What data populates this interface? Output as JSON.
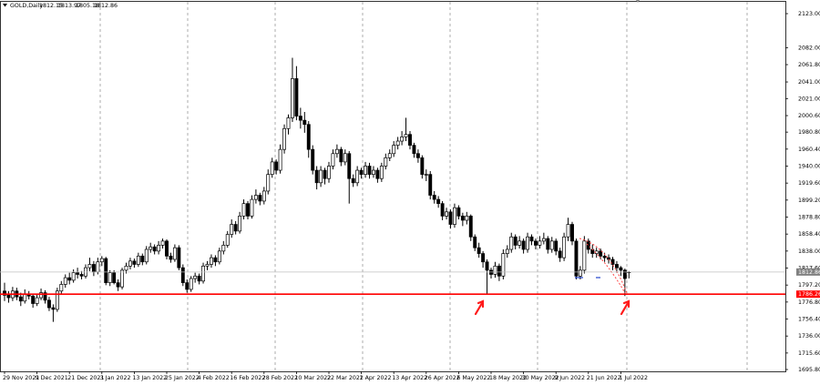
{
  "chart_data": {
    "type": "candlestick",
    "symbol": "GOLD,Daily",
    "up_color": "#ffffff",
    "down_color": "#000000",
    "outline": "#000000",
    "ylim": [
      1693.6,
      2137.2
    ],
    "yticks": [
      {
        "value": 2123,
        "label": "2123.00"
      },
      {
        "value": 2082,
        "label": "2082.00"
      },
      {
        "value": 2061.8,
        "label": "2061.80"
      },
      {
        "value": 2041,
        "label": "2041.00"
      },
      {
        "value": 2021,
        "label": "2021.00"
      },
      {
        "value": 2000.6,
        "label": "2000.60"
      },
      {
        "value": 1980.8,
        "label": "1980.80"
      },
      {
        "value": 1960.4,
        "label": "1960.40"
      },
      {
        "value": 1940,
        "label": "1940.00"
      },
      {
        "value": 1919.6,
        "label": "1919.60"
      },
      {
        "value": 1899.2,
        "label": "1899.20"
      },
      {
        "value": 1878.8,
        "label": "1878.80"
      },
      {
        "value": 1858.4,
        "label": "1858.40"
      },
      {
        "value": 1838,
        "label": "1838.00"
      },
      {
        "value": 1817.6,
        "label": "1817.60"
      },
      {
        "value": 1797.2,
        "label": "1797.20"
      },
      {
        "value": 1776.8,
        "label": "1776.80"
      },
      {
        "value": 1756.4,
        "label": "1756.40"
      },
      {
        "value": 1736,
        "label": "1736.00"
      },
      {
        "value": 1715.6,
        "label": "1715.60"
      },
      {
        "value": 1695.8,
        "label": "1695.80"
      }
    ],
    "hline": {
      "value": 1786.26,
      "color": "#ff0000"
    },
    "x": [
      "29 Nov 2021",
      null,
      null,
      null,
      null,
      null,
      null,
      null,
      "9 Dec 2021",
      null,
      null,
      null,
      null,
      null,
      null,
      null,
      "21 Dec 2021",
      null,
      null,
      null,
      null,
      null,
      null,
      null,
      "3 Jan 2022",
      null,
      null,
      null,
      null,
      null,
      null,
      null,
      "13 Jan 2022",
      null,
      null,
      null,
      null,
      null,
      null,
      null,
      "25 Jan 2022",
      null,
      null,
      null,
      null,
      null,
      null,
      null,
      "4 Feb 2022",
      null,
      null,
      null,
      null,
      null,
      null,
      null,
      "16 Feb 2022",
      null,
      null,
      null,
      null,
      null,
      null,
      null,
      "28 Feb 2022",
      null,
      null,
      null,
      null,
      null,
      null,
      null,
      "10 Mar 2022",
      null,
      null,
      null,
      null,
      null,
      null,
      null,
      "22 Mar 2022",
      null,
      null,
      null,
      null,
      null,
      null,
      null,
      "1 Apr 2022",
      null,
      null,
      null,
      null,
      null,
      null,
      null,
      "13 Apr 2022",
      null,
      null,
      null,
      null,
      null,
      null,
      null,
      "26 Apr 2022",
      null,
      null,
      null,
      null,
      null,
      null,
      null,
      "6 May 2022",
      null,
      null,
      null,
      null,
      null,
      null,
      null,
      "18 May 2022",
      null,
      null,
      null,
      null,
      null,
      null,
      null,
      "30 May 2022",
      null,
      null,
      null,
      null,
      null,
      null,
      null,
      "9 Jun 2022",
      null,
      null,
      null,
      null,
      null,
      null,
      null,
      "21 Jun 2022",
      null,
      null,
      null,
      null,
      null,
      null,
      null,
      "1 Jul 2022",
      null,
      null
    ],
    "ohlc": [
      [
        1790,
        1800,
        1778,
        1785
      ],
      [
        1785,
        1790,
        1776,
        1782
      ],
      [
        1782,
        1795,
        1778,
        1790
      ],
      [
        1790,
        1794,
        1779,
        1783
      ],
      [
        1783,
        1788,
        1772,
        1778
      ],
      [
        1778,
        1792,
        1775,
        1786
      ],
      [
        1786,
        1790,
        1780,
        1784
      ],
      [
        1784,
        1787,
        1770,
        1775
      ],
      [
        1775,
        1786,
        1772,
        1782
      ],
      [
        1782,
        1793,
        1779,
        1788
      ],
      [
        1788,
        1791,
        1775,
        1779
      ],
      [
        1779,
        1783,
        1766,
        1770
      ],
      [
        1770,
        1774,
        1753,
        1768
      ],
      [
        1768,
        1794,
        1765,
        1790
      ],
      [
        1790,
        1802,
        1786,
        1798
      ],
      [
        1798,
        1810,
        1794,
        1806
      ],
      [
        1806,
        1812,
        1798,
        1803
      ],
      [
        1803,
        1816,
        1800,
        1812
      ],
      [
        1812,
        1818,
        1805,
        1810
      ],
      [
        1810,
        1814,
        1804,
        1808
      ],
      [
        1808,
        1822,
        1805,
        1818
      ],
      [
        1818,
        1830,
        1814,
        1822
      ],
      [
        1822,
        1826,
        1808,
        1813
      ],
      [
        1813,
        1830,
        1810,
        1825
      ],
      [
        1825,
        1832,
        1820,
        1829
      ],
      [
        1829,
        1831,
        1797,
        1800
      ],
      [
        1800,
        1815,
        1796,
        1812
      ],
      [
        1812,
        1815,
        1798,
        1800
      ],
      [
        1800,
        1804,
        1790,
        1795
      ],
      [
        1795,
        1818,
        1792,
        1815
      ],
      [
        1815,
        1824,
        1811,
        1820
      ],
      [
        1820,
        1830,
        1816,
        1826
      ],
      [
        1826,
        1829,
        1818,
        1822
      ],
      [
        1822,
        1836,
        1819,
        1832
      ],
      [
        1832,
        1835,
        1821,
        1825
      ],
      [
        1825,
        1844,
        1822,
        1840
      ],
      [
        1840,
        1848,
        1836,
        1843
      ],
      [
        1843,
        1846,
        1834,
        1838
      ],
      [
        1838,
        1850,
        1834,
        1845
      ],
      [
        1845,
        1853,
        1841,
        1850
      ],
      [
        1850,
        1852,
        1828,
        1832
      ],
      [
        1832,
        1836,
        1824,
        1828
      ],
      [
        1828,
        1846,
        1825,
        1842
      ],
      [
        1842,
        1845,
        1815,
        1818
      ],
      [
        1818,
        1822,
        1796,
        1800
      ],
      [
        1800,
        1804,
        1788,
        1792
      ],
      [
        1792,
        1808,
        1789,
        1805
      ],
      [
        1805,
        1812,
        1800,
        1808
      ],
      [
        1808,
        1811,
        1798,
        1802
      ],
      [
        1802,
        1824,
        1799,
        1820
      ],
      [
        1820,
        1826,
        1815,
        1822
      ],
      [
        1822,
        1834,
        1818,
        1830
      ],
      [
        1830,
        1833,
        1820,
        1825
      ],
      [
        1825,
        1842,
        1822,
        1838
      ],
      [
        1838,
        1850,
        1834,
        1845
      ],
      [
        1845,
        1862,
        1842,
        1858
      ],
      [
        1858,
        1876,
        1854,
        1870
      ],
      [
        1870,
        1874,
        1858,
        1862
      ],
      [
        1862,
        1885,
        1859,
        1880
      ],
      [
        1880,
        1900,
        1876,
        1895
      ],
      [
        1895,
        1898,
        1876,
        1880
      ],
      [
        1880,
        1905,
        1877,
        1900
      ],
      [
        1900,
        1912,
        1895,
        1905
      ],
      [
        1905,
        1908,
        1893,
        1898
      ],
      [
        1898,
        1915,
        1894,
        1910
      ],
      [
        1910,
        1936,
        1906,
        1930
      ],
      [
        1930,
        1950,
        1926,
        1945
      ],
      [
        1945,
        1948,
        1930,
        1935
      ],
      [
        1935,
        1966,
        1931,
        1960
      ],
      [
        1960,
        1990,
        1955,
        1985
      ],
      [
        1985,
        2002,
        1978,
        1998
      ],
      [
        1998,
        2070,
        1993,
        2045
      ],
      [
        2045,
        2060,
        1995,
        2000
      ],
      [
        2000,
        2010,
        1985,
        1995
      ],
      [
        1995,
        2005,
        1980,
        1990
      ],
      [
        1990,
        1994,
        1950,
        1960
      ],
      [
        1960,
        1965,
        1930,
        1935
      ],
      [
        1935,
        1940,
        1912,
        1920
      ],
      [
        1920,
        1940,
        1915,
        1935
      ],
      [
        1935,
        1938,
        1918,
        1925
      ],
      [
        1925,
        1945,
        1920,
        1940
      ],
      [
        1940,
        1960,
        1936,
        1955
      ],
      [
        1955,
        1966,
        1950,
        1960
      ],
      [
        1960,
        1963,
        1940,
        1945
      ],
      [
        1945,
        1960,
        1941,
        1955
      ],
      [
        1955,
        1958,
        1895,
        1925
      ],
      [
        1925,
        1930,
        1915,
        1920
      ],
      [
        1920,
        1940,
        1916,
        1935
      ],
      [
        1935,
        1938,
        1925,
        1930
      ],
      [
        1930,
        1945,
        1926,
        1940
      ],
      [
        1940,
        1944,
        1925,
        1930
      ],
      [
        1930,
        1940,
        1926,
        1935
      ],
      [
        1935,
        1938,
        1920,
        1925
      ],
      [
        1925,
        1944,
        1921,
        1940
      ],
      [
        1940,
        1955,
        1936,
        1950
      ],
      [
        1950,
        1960,
        1946,
        1955
      ],
      [
        1955,
        1970,
        1951,
        1965
      ],
      [
        1965,
        1975,
        1960,
        1970
      ],
      [
        1970,
        1982,
        1965,
        1975
      ],
      [
        1975,
        1998,
        1970,
        1978
      ],
      [
        1978,
        1982,
        1960,
        1965
      ],
      [
        1965,
        1968,
        1950,
        1955
      ],
      [
        1955,
        1960,
        1944,
        1950
      ],
      [
        1950,
        1953,
        1925,
        1930
      ],
      [
        1930,
        1936,
        1922,
        1930
      ],
      [
        1930,
        1934,
        1900,
        1905
      ],
      [
        1905,
        1910,
        1895,
        1900
      ],
      [
        1900,
        1904,
        1890,
        1895
      ],
      [
        1895,
        1898,
        1875,
        1880
      ],
      [
        1880,
        1890,
        1876,
        1885
      ],
      [
        1885,
        1888,
        1865,
        1870
      ],
      [
        1870,
        1895,
        1866,
        1890
      ],
      [
        1890,
        1893,
        1876,
        1880
      ],
      [
        1880,
        1884,
        1868,
        1875
      ],
      [
        1875,
        1885,
        1870,
        1880
      ],
      [
        1880,
        1882,
        1850,
        1855
      ],
      [
        1855,
        1858,
        1838,
        1842
      ],
      [
        1842,
        1848,
        1830,
        1835
      ],
      [
        1835,
        1838,
        1818,
        1825
      ],
      [
        1825,
        1828,
        1787,
        1815
      ],
      [
        1815,
        1818,
        1805,
        1810
      ],
      [
        1810,
        1825,
        1806,
        1820
      ],
      [
        1820,
        1823,
        1802,
        1808
      ],
      [
        1808,
        1840,
        1804,
        1835
      ],
      [
        1835,
        1845,
        1830,
        1840
      ],
      [
        1840,
        1860,
        1836,
        1855
      ],
      [
        1855,
        1858,
        1840,
        1845
      ],
      [
        1845,
        1856,
        1841,
        1850
      ],
      [
        1850,
        1853,
        1835,
        1840
      ],
      [
        1840,
        1860,
        1836,
        1855
      ],
      [
        1855,
        1858,
        1845,
        1850
      ],
      [
        1850,
        1853,
        1840,
        1845
      ],
      [
        1845,
        1856,
        1841,
        1850
      ],
      [
        1850,
        1860,
        1846,
        1853
      ],
      [
        1853,
        1856,
        1835,
        1840
      ],
      [
        1840,
        1855,
        1836,
        1850
      ],
      [
        1850,
        1853,
        1833,
        1838
      ],
      [
        1838,
        1842,
        1825,
        1830
      ],
      [
        1830,
        1860,
        1826,
        1855
      ],
      [
        1855,
        1878,
        1850,
        1870
      ],
      [
        1870,
        1873,
        1845,
        1850
      ],
      [
        1850,
        1853,
        1804,
        1808
      ],
      [
        1808,
        1820,
        1804,
        1815
      ],
      [
        1815,
        1856,
        1811,
        1850
      ],
      [
        1850,
        1853,
        1835,
        1840
      ],
      [
        1840,
        1846,
        1830,
        1835
      ],
      [
        1835,
        1842,
        1830,
        1838
      ],
      [
        1838,
        1841,
        1828,
        1832
      ],
      [
        1832,
        1836,
        1825,
        1830
      ],
      [
        1830,
        1834,
        1823,
        1828
      ],
      [
        1828,
        1831,
        1815,
        1822
      ],
      [
        1822,
        1826,
        1812,
        1818
      ],
      [
        1818,
        1820,
        1808,
        1815
      ],
      [
        1815,
        1817,
        1784,
        1805
      ],
      [
        1812.15,
        1813.97,
        1805.18,
        1812.86
      ]
    ]
  }
}
